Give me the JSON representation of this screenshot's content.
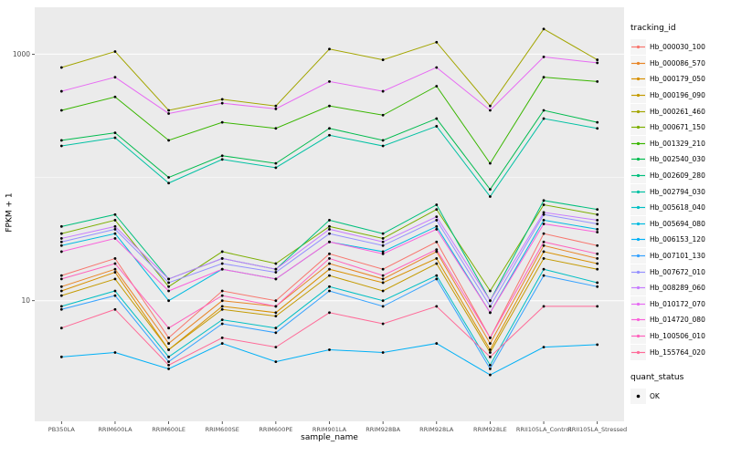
{
  "chart_data": {
    "type": "line",
    "title": "",
    "xlabel": "sample_name",
    "ylabel": "FPKM + 1",
    "y_scale": "log10",
    "ylim": [
      1.05,
      2400
    ],
    "y_ticks": [
      {
        "label": "1000",
        "value": 1000
      },
      {
        "label": "10",
        "value": 10
      }
    ],
    "minor_gridlines": [
      100
    ],
    "grid": true,
    "legend_position": "right",
    "legend_title": "tracking_id",
    "point_legend_title": "quant_status",
    "point_legend_items": [
      {
        "label": "OK"
      }
    ],
    "categories": [
      "PB350LA",
      "RRIM600LA",
      "RRIM600LE",
      "RRIM600SE",
      "RRIM600PE",
      "RRIM901LA",
      "RRIM928BA",
      "RRIM928LA",
      "RRIM928LE",
      "RRII105LA_Control",
      "RRII105LA_Stressed"
    ],
    "series": [
      {
        "name": "Hb_000030_100",
        "color": "#F8766D",
        "values": [
          16,
          22,
          5,
          12,
          10,
          24,
          18,
          30,
          5,
          35,
          28
        ]
      },
      {
        "name": "Hb_000086_570",
        "color": "#E88526",
        "values": [
          13,
          18,
          4.5,
          10,
          9,
          20,
          15,
          25,
          4.5,
          28,
          22
        ]
      },
      {
        "name": "Hb_000179_050",
        "color": "#D89000",
        "values": [
          12,
          17,
          4,
          9,
          8,
          18,
          14,
          22,
          4,
          25,
          20
        ]
      },
      {
        "name": "Hb_000196_090",
        "color": "#C49A00",
        "values": [
          11,
          15,
          4,
          8.5,
          7.5,
          16,
          12,
          20,
          3.8,
          22,
          18
        ]
      },
      {
        "name": "Hb_000261_460",
        "color": "#A3A500",
        "values": [
          780,
          1050,
          350,
          430,
          380,
          1100,
          900,
          1250,
          380,
          1600,
          900
        ]
      },
      {
        "name": "Hb_000671_150",
        "color": "#7CAE00",
        "values": [
          35,
          45,
          13,
          25,
          20,
          40,
          32,
          55,
          12,
          60,
          50
        ]
      },
      {
        "name": "Hb_001329_210",
        "color": "#39B600",
        "values": [
          350,
          450,
          200,
          280,
          250,
          380,
          320,
          550,
          130,
          650,
          600
        ]
      },
      {
        "name": "Hb_002540_030",
        "color": "#00BB4E",
        "values": [
          200,
          230,
          100,
          150,
          130,
          250,
          200,
          300,
          80,
          350,
          280
        ]
      },
      {
        "name": "Hb_002609_280",
        "color": "#00BF7D",
        "values": [
          40,
          50,
          15,
          22,
          18,
          45,
          35,
          60,
          10,
          65,
          55
        ]
      },
      {
        "name": "Hb_002794_030",
        "color": "#00C1A3",
        "values": [
          180,
          210,
          90,
          140,
          120,
          220,
          180,
          260,
          70,
          300,
          250
        ]
      },
      {
        "name": "Hb_005618_040",
        "color": "#00BFC4",
        "values": [
          9,
          12,
          3.5,
          7,
          6,
          13,
          10,
          16,
          3,
          18,
          14
        ]
      },
      {
        "name": "Hb_005694_080",
        "color": "#00BAE0",
        "values": [
          28,
          35,
          10,
          18,
          15,
          30,
          25,
          40,
          8,
          45,
          38
        ]
      },
      {
        "name": "Hb_006153_120",
        "color": "#00B0F6",
        "values": [
          3.5,
          3.8,
          2.8,
          4.5,
          3.2,
          4,
          3.8,
          4.5,
          2.5,
          4.2,
          4.4
        ]
      },
      {
        "name": "Hb_007101_130",
        "color": "#35A2FF",
        "values": [
          8.5,
          11,
          3.2,
          6.5,
          5.5,
          12,
          9,
          15,
          2.8,
          16,
          13
        ]
      },
      {
        "name": "Hb_007672_010",
        "color": "#9590FF",
        "values": [
          30,
          38,
          14,
          20,
          17,
          35,
          28,
          45,
          9,
          50,
          42
        ]
      },
      {
        "name": "Hb_008289_060",
        "color": "#C77CFF",
        "values": [
          32,
          40,
          15,
          22,
          18,
          38,
          30,
          48,
          10,
          52,
          45
        ]
      },
      {
        "name": "Hb_010172_070",
        "color": "#E76BF3",
        "values": [
          500,
          650,
          330,
          400,
          360,
          600,
          500,
          780,
          350,
          950,
          850
        ]
      },
      {
        "name": "Hb_014720_080",
        "color": "#FA62DB",
        "values": [
          25,
          32,
          12,
          18,
          15,
          30,
          24,
          38,
          8,
          42,
          36
        ]
      },
      {
        "name": "Hb_100506_010",
        "color": "#FF62BC",
        "values": [
          15,
          20,
          6,
          11,
          9,
          22,
          16,
          26,
          5,
          30,
          24
        ]
      },
      {
        "name": "Hb_155764_020",
        "color": "#FF6A98",
        "values": [
          6,
          8.5,
          3,
          5,
          4.2,
          8,
          6.5,
          9,
          3.5,
          9,
          9
        ]
      }
    ],
    "colors": {
      "panel_bg": "#EBEBEB",
      "grid": "#FFFFFF",
      "axis_text": "#4D4D4D",
      "tick": "#333333",
      "point": "#000000"
    }
  }
}
